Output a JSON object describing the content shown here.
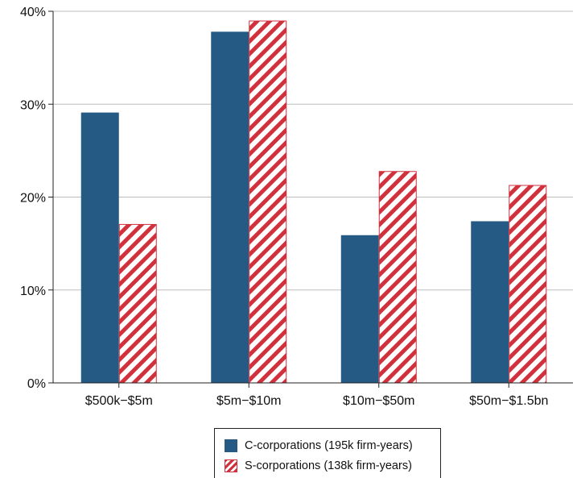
{
  "colors": {
    "c_corp": "#245a84",
    "s_corp_stripe": "#d0313c",
    "s_corp_bg": "#ffffff",
    "grid": "#bdbdbd",
    "axis": "#222222"
  },
  "chart_data": {
    "type": "bar",
    "title": "",
    "xlabel": "",
    "ylabel": "",
    "categories": [
      "$500k−$5m",
      "$5m−$10m",
      "$10m−$50m",
      "$50m−$1.5bn"
    ],
    "ylim": [
      0,
      40
    ],
    "yticks": [
      0,
      10,
      20,
      30,
      40
    ],
    "ytick_labels": [
      "0%",
      "10%",
      "20%",
      "30%",
      "40%"
    ],
    "grid": true,
    "legend_position": "bottom-center",
    "series": [
      {
        "name": "C-corporations (195k firm-years)",
        "values": [
          29.1,
          37.8,
          15.9,
          17.4
        ],
        "pattern": "solid"
      },
      {
        "name": "S-corporations (138k firm-years)",
        "values": [
          17.1,
          39.0,
          22.8,
          21.3
        ],
        "pattern": "diagonal-stripes"
      }
    ]
  }
}
